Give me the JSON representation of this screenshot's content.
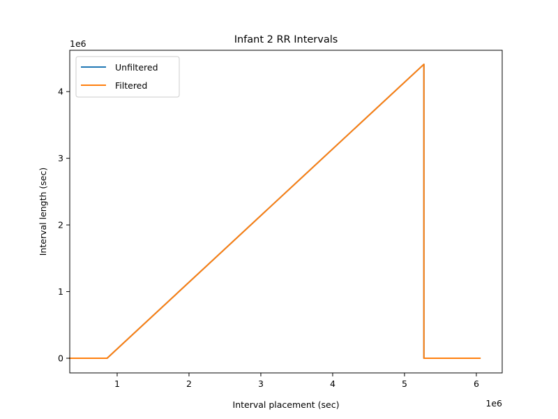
{
  "chart_data": {
    "type": "line",
    "title": "Infant 2 RR Intervals",
    "xlabel": "Interval placement (sec)",
    "ylabel": "Interval length (sec)",
    "x_offset_label": "1e6",
    "y_offset_label": "1e6",
    "xlim": [
      0.34,
      6.36
    ],
    "ylim": [
      -0.22,
      4.62
    ],
    "x_ticks": [
      1,
      2,
      3,
      4,
      5,
      6
    ],
    "x_tick_labels": [
      "1",
      "2",
      "3",
      "4",
      "5",
      "6"
    ],
    "y_ticks": [
      0,
      1,
      2,
      3,
      4
    ],
    "y_tick_labels": [
      "0",
      "1",
      "2",
      "3",
      "4"
    ],
    "grid": false,
    "legend_position": "upper-left",
    "series": [
      {
        "name": "Unfiltered",
        "color": "#1f77b4",
        "x": [
          0.34,
          0.86,
          5.27,
          5.27,
          6.05
        ],
        "y": [
          0.0,
          0.0,
          4.41,
          0.0,
          0.0
        ]
      },
      {
        "name": "Filtered",
        "color": "#ff7f0e",
        "x": [
          0.34,
          0.86,
          5.27,
          5.27,
          6.05
        ],
        "y": [
          0.0,
          0.0,
          4.41,
          0.0,
          0.0
        ]
      }
    ]
  }
}
